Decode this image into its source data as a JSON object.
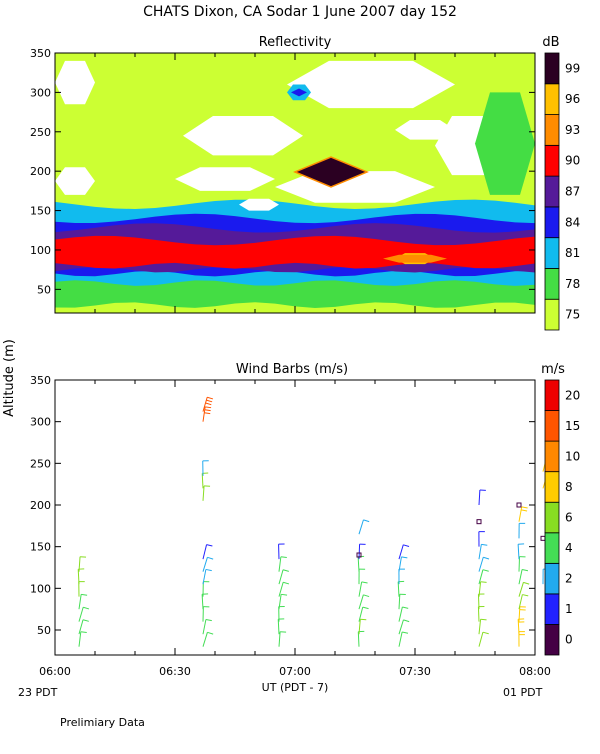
{
  "page": {
    "title": "CHATS Dixon, CA  Sodar    1 June 2007   day 152",
    "shared_ylabel": "Altitude (m)",
    "xlabel": "UT  (PDT - 7)",
    "start_local": "23 PDT",
    "end_local": "01 PDT",
    "footer": "Prelimiary Data"
  },
  "chart_data": [
    {
      "type": "heatmap",
      "title": "Reflectivity",
      "unit": "dB",
      "xlim": [
        0,
        120
      ],
      "ylim": [
        20,
        350
      ],
      "yticks": [
        50,
        100,
        150,
        200,
        250,
        300,
        350
      ],
      "xticks": [
        0,
        30,
        60,
        90,
        120
      ],
      "xticklabels": [
        "06:00",
        "06:30",
        "07:00",
        "07:30",
        "08:00"
      ],
      "color_levels": [
        75,
        78,
        81,
        84,
        87,
        90,
        93,
        96,
        99
      ],
      "colors": {
        "75": "#ccff33",
        "78": "#44dd44",
        "81": "#11bbee",
        "84": "#1a1aee",
        "87": "#551a99",
        "90": "#ff0000",
        "93": "#ff8c00",
        "96": "#ffc000",
        "99": "#2b0022",
        "below": "#ffffff"
      },
      "bands": [
        {
          "level": 75,
          "y": [
            20,
            350
          ]
        },
        {
          "level": 78,
          "y": [
            30,
            150
          ]
        },
        {
          "level": 81,
          "y": [
            58,
            158
          ]
        },
        {
          "level": 84,
          "y": [
            70,
            140
          ]
        },
        {
          "level": 87,
          "y": [
            75,
            128
          ]
        },
        {
          "level": 90,
          "y": [
            80,
            112
          ]
        }
      ],
      "features": [
        {
          "level": "below",
          "t": [
            0,
            10
          ],
          "y": [
            285,
            340
          ]
        },
        {
          "level": "below",
          "t": [
            32,
            62
          ],
          "y": [
            220,
            270
          ]
        },
        {
          "level": "below",
          "t": [
            58,
            100
          ],
          "y": [
            280,
            340
          ]
        },
        {
          "level": "below",
          "t": [
            30,
            55
          ],
          "y": [
            175,
            205
          ]
        },
        {
          "level": "below",
          "t": [
            55,
            95
          ],
          "y": [
            160,
            200
          ]
        },
        {
          "level": "below",
          "t": [
            95,
            112
          ],
          "y": [
            195,
            270
          ]
        },
        {
          "level": "below",
          "t": [
            0,
            10
          ],
          "y": [
            170,
            205
          ]
        },
        {
          "level": "below",
          "t": [
            46,
            56
          ],
          "y": [
            150,
            165
          ]
        },
        {
          "level": "below",
          "t": [
            85,
            100
          ],
          "y": [
            240,
            265
          ]
        },
        {
          "level": 78,
          "t": [
            105,
            120
          ],
          "y": [
            170,
            300
          ]
        },
        {
          "level": 81,
          "t": [
            58,
            64
          ],
          "y": [
            290,
            310
          ]
        },
        {
          "level": 84,
          "t": [
            59,
            63
          ],
          "y": [
            295,
            305
          ]
        },
        {
          "level": 99,
          "t": [
            60,
            78
          ],
          "y": [
            180,
            218
          ]
        },
        {
          "level": 96,
          "t": [
            85,
            95
          ],
          "y": [
            82,
            96
          ]
        },
        {
          "level": 93,
          "t": [
            82,
            98
          ],
          "y": [
            84,
            94
          ]
        }
      ]
    },
    {
      "type": "scatter",
      "title": "Wind Barbs (m/s)",
      "unit": "m/s",
      "xlim": [
        0,
        120
      ],
      "ylim": [
        20,
        350
      ],
      "yticks": [
        50,
        100,
        150,
        200,
        250,
        300,
        350
      ],
      "xticks": [
        0,
        30,
        60,
        90,
        120
      ],
      "xticklabels": [
        "06:00",
        "06:30",
        "07:00",
        "07:30",
        "08:00"
      ],
      "color_levels": [
        0,
        1,
        2,
        4,
        6,
        8,
        10,
        15,
        20
      ],
      "level_labels": [
        "0",
        "1",
        "2",
        "4",
        "6",
        "8",
        "10",
        "15",
        "20"
      ],
      "colors": [
        "#440044",
        "#2222ff",
        "#22aaee",
        "#44dd55",
        "#88dd22",
        "#ffcc00",
        "#ff8800",
        "#ff5500",
        "#ee0000"
      ],
      "profiles": [
        {
          "t": 6,
          "obs": [
            [
              30,
              4
            ],
            [
              45,
              4
            ],
            [
              60,
              4
            ],
            [
              75,
              4
            ],
            [
              90,
              6
            ],
            [
              105,
              6
            ],
            [
              120,
              6
            ]
          ]
        },
        {
          "t": 37,
          "obs": [
            [
              30,
              4
            ],
            [
              45,
              4
            ],
            [
              60,
              4
            ],
            [
              75,
              4
            ],
            [
              90,
              4
            ],
            [
              105,
              2
            ],
            [
              120,
              2
            ],
            [
              135,
              1
            ],
            [
              205,
              6
            ],
            [
              220,
              6
            ],
            [
              235,
              2
            ],
            [
              300,
              15
            ],
            [
              312,
              15
            ]
          ]
        },
        {
          "t": 56,
          "obs": [
            [
              30,
              4
            ],
            [
              45,
              4
            ],
            [
              60,
              4
            ],
            [
              75,
              4
            ],
            [
              90,
              4
            ],
            [
              105,
              4
            ],
            [
              120,
              4
            ],
            [
              135,
              1
            ]
          ]
        },
        {
          "t": 76,
          "obs": [
            [
              30,
              4
            ],
            [
              45,
              6
            ],
            [
              60,
              4
            ],
            [
              75,
              4
            ],
            [
              90,
              4
            ],
            [
              105,
              4
            ],
            [
              120,
              4
            ],
            [
              135,
              1
            ],
            [
              140,
              0
            ],
            [
              165,
              2
            ]
          ]
        },
        {
          "t": 86,
          "obs": [
            [
              30,
              4
            ],
            [
              45,
              4
            ],
            [
              60,
              4
            ],
            [
              75,
              4
            ],
            [
              90,
              4
            ],
            [
              105,
              2
            ],
            [
              120,
              2
            ],
            [
              135,
              1
            ]
          ]
        },
        {
          "t": 106,
          "obs": [
            [
              30,
              6
            ],
            [
              45,
              6
            ],
            [
              60,
              6
            ],
            [
              75,
              6
            ],
            [
              90,
              6
            ],
            [
              105,
              4
            ],
            [
              120,
              2
            ],
            [
              135,
              2
            ],
            [
              150,
              1
            ],
            [
              180,
              0
            ],
            [
              200,
              1
            ]
          ]
        },
        {
          "t": 116,
          "obs": [
            [
              30,
              8
            ],
            [
              45,
              8
            ],
            [
              60,
              8
            ],
            [
              75,
              6
            ],
            [
              90,
              6
            ],
            [
              105,
              4
            ],
            [
              120,
              4
            ],
            [
              135,
              2
            ],
            [
              160,
              2
            ],
            [
              180,
              8
            ],
            [
              200,
              0
            ]
          ]
        },
        {
          "t": 122,
          "obs": [
            [
              105,
              2
            ],
            [
              160,
              0
            ],
            [
              220,
              8
            ],
            [
              240,
              8
            ]
          ]
        }
      ]
    }
  ]
}
